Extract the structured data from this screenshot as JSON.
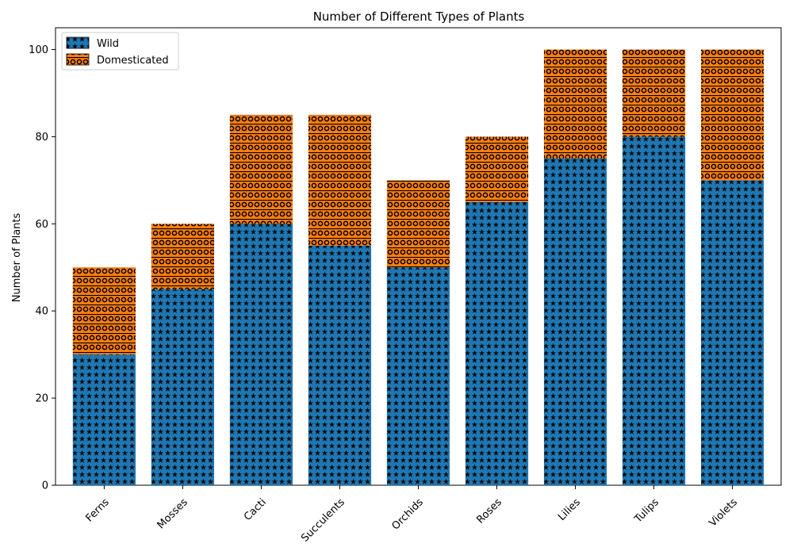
{
  "chart_data": {
    "type": "bar",
    "stacked": true,
    "title": "Number of Different Types of Plants",
    "xlabel": "",
    "ylabel": "Number of Plants",
    "categories": [
      "Ferns",
      "Mosses",
      "Cacti",
      "Succulents",
      "Orchids",
      "Roses",
      "Lilies",
      "Tulips",
      "Violets"
    ],
    "series": [
      {
        "name": "Wild",
        "values": [
          30,
          45,
          60,
          55,
          50,
          65,
          75,
          80,
          70
        ],
        "color": "#1f77b4",
        "hatch": "stars"
      },
      {
        "name": "Domesticated",
        "values": [
          20,
          15,
          25,
          30,
          20,
          15,
          25,
          20,
          30
        ],
        "color": "#ff7f0e",
        "hatch": "circles-and-lines"
      }
    ],
    "ylim": [
      0,
      105
    ],
    "yticks": [
      0,
      20,
      40,
      60,
      80,
      100
    ],
    "grid": false,
    "legend_position": "top-left",
    "x_tick_rotation": 45
  }
}
